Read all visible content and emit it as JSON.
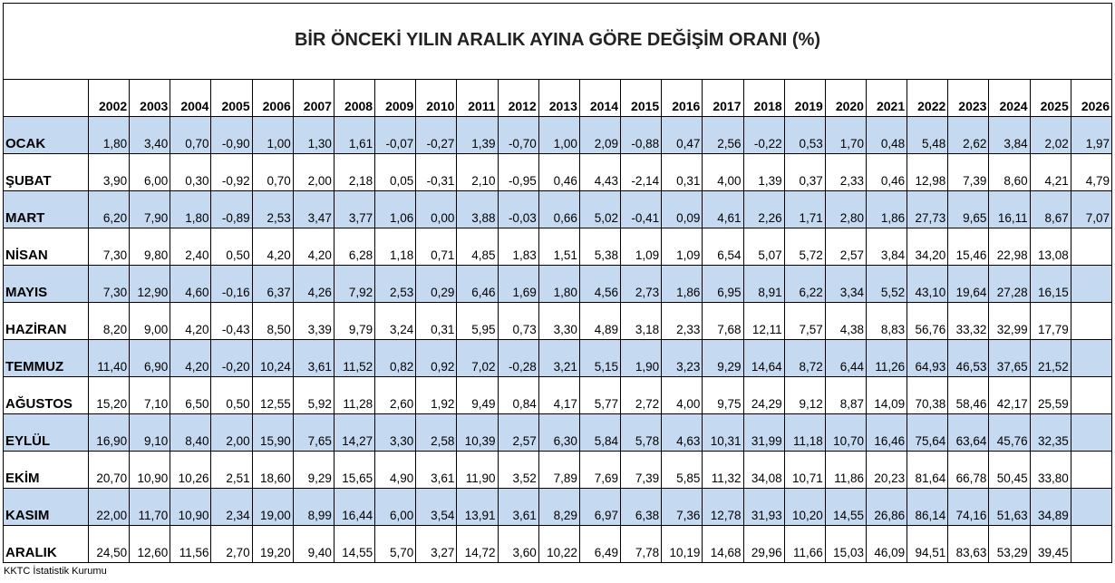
{
  "title": "BİR ÖNCEKİ YILIN ARALIK AYINA GÖRE DEĞİŞİM ORANI (%)",
  "table": {
    "columns": [
      "2002",
      "2003",
      "2004",
      "2005",
      "2006",
      "2007",
      "2008",
      "2009",
      "2010",
      "2011",
      "2012",
      "2013",
      "2014",
      "2015",
      "2016",
      "2017",
      "2018",
      "2019",
      "2020",
      "2021",
      "2022",
      "2023",
      "2024",
      "2025",
      "2026"
    ],
    "rows": [
      {
        "label": "OCAK",
        "values": [
          "1,80",
          "3,40",
          "0,70",
          "-0,90",
          "1,00",
          "1,30",
          "1,61",
          "-0,07",
          "-0,27",
          "1,39",
          "-0,70",
          "1,00",
          "2,09",
          "-0,88",
          "0,47",
          "2,56",
          "-0,22",
          "0,53",
          "1,70",
          "0,48",
          "5,48",
          "2,62",
          "3,84",
          "2,02",
          "1,97"
        ]
      },
      {
        "label": "ŞUBAT",
        "values": [
          "3,90",
          "6,00",
          "0,30",
          "-0,92",
          "0,70",
          "2,00",
          "2,18",
          "0,05",
          "-0,31",
          "2,10",
          "-0,95",
          "0,46",
          "4,43",
          "-2,14",
          "0,31",
          "4,00",
          "1,39",
          "0,37",
          "2,33",
          "0,46",
          "12,98",
          "7,39",
          "8,60",
          "4,21",
          "4,79"
        ]
      },
      {
        "label": "MART",
        "values": [
          "6,20",
          "7,90",
          "1,80",
          "-0,89",
          "2,53",
          "3,47",
          "3,77",
          "1,06",
          "0,00",
          "3,88",
          "-0,03",
          "0,66",
          "5,02",
          "-0,41",
          "0,09",
          "4,61",
          "2,26",
          "1,71",
          "2,80",
          "1,86",
          "27,73",
          "9,65",
          "16,11",
          "8,67",
          "7,07"
        ]
      },
      {
        "label": "NİSAN",
        "values": [
          "7,30",
          "9,80",
          "2,40",
          "0,50",
          "4,20",
          "4,20",
          "6,28",
          "1,18",
          "0,71",
          "4,85",
          "1,83",
          "1,51",
          "5,38",
          "1,09",
          "1,09",
          "6,54",
          "5,07",
          "5,72",
          "2,57",
          "3,84",
          "34,20",
          "15,46",
          "22,98",
          "13,08"
        ]
      },
      {
        "label": "MAYIS",
        "values": [
          "7,30",
          "12,90",
          "4,60",
          "-0,16",
          "6,37",
          "4,26",
          "7,92",
          "2,53",
          "0,29",
          "6,46",
          "1,69",
          "1,80",
          "4,56",
          "2,73",
          "1,86",
          "6,95",
          "8,91",
          "6,22",
          "3,34",
          "5,52",
          "43,10",
          "19,64",
          "27,28",
          "16,15"
        ]
      },
      {
        "label": "HAZİRAN",
        "values": [
          "8,20",
          "9,00",
          "4,20",
          "-0,43",
          "8,50",
          "3,39",
          "9,79",
          "3,24",
          "0,31",
          "5,95",
          "0,73",
          "3,30",
          "4,89",
          "3,18",
          "2,33",
          "7,68",
          "12,11",
          "7,57",
          "4,38",
          "8,83",
          "56,76",
          "33,32",
          "32,99",
          "17,79"
        ]
      },
      {
        "label": "TEMMUZ",
        "values": [
          "11,40",
          "6,90",
          "4,20",
          "-0,20",
          "10,24",
          "3,61",
          "11,52",
          "0,82",
          "0,92",
          "7,02",
          "-0,28",
          "3,21",
          "5,15",
          "1,90",
          "3,23",
          "9,29",
          "14,64",
          "8,72",
          "6,44",
          "11,26",
          "64,93",
          "46,53",
          "37,65",
          "21,52"
        ]
      },
      {
        "label": "AĞUSTOS",
        "values": [
          "15,20",
          "7,10",
          "6,50",
          "0,50",
          "12,55",
          "5,92",
          "11,28",
          "2,60",
          "1,92",
          "9,49",
          "0,84",
          "4,17",
          "5,77",
          "2,72",
          "4,00",
          "9,75",
          "24,29",
          "9,12",
          "8,87",
          "14,09",
          "70,38",
          "58,46",
          "42,17",
          "25,59"
        ]
      },
      {
        "label": "EYLÜL",
        "values": [
          "16,90",
          "9,10",
          "8,40",
          "2,00",
          "15,90",
          "7,65",
          "14,27",
          "3,30",
          "2,58",
          "10,39",
          "2,57",
          "6,30",
          "5,84",
          "5,78",
          "4,63",
          "10,31",
          "31,99",
          "11,18",
          "10,70",
          "16,46",
          "75,64",
          "63,64",
          "45,76",
          "32,35"
        ]
      },
      {
        "label": "EKİM",
        "values": [
          "20,70",
          "10,90",
          "10,26",
          "2,51",
          "18,60",
          "9,29",
          "15,65",
          "4,90",
          "3,61",
          "11,90",
          "3,52",
          "7,89",
          "7,69",
          "7,39",
          "5,85",
          "11,32",
          "34,08",
          "10,71",
          "11,86",
          "20,23",
          "81,64",
          "66,78",
          "50,45",
          "33,80"
        ]
      },
      {
        "label": "KASIM",
        "values": [
          "22,00",
          "11,70",
          "10,90",
          "2,34",
          "19,00",
          "8,99",
          "16,44",
          "6,00",
          "3,54",
          "13,91",
          "3,61",
          "8,29",
          "6,97",
          "6,38",
          "7,36",
          "12,78",
          "31,93",
          "10,20",
          "14,55",
          "26,86",
          "86,14",
          "74,16",
          "51,63",
          "34,89"
        ]
      },
      {
        "label": "ARALIK",
        "values": [
          "24,50",
          "12,60",
          "11,56",
          "2,70",
          "19,20",
          "9,40",
          "14,55",
          "5,70",
          "3,27",
          "14,72",
          "3,60",
          "10,22",
          "6,49",
          "7,78",
          "10,19",
          "14,68",
          "29,96",
          "11,66",
          "15,03",
          "46,09",
          "94,51",
          "83,63",
          "53,29",
          "39,45"
        ]
      }
    ]
  },
  "footer": "KKTC İstatistik Kurumu"
}
